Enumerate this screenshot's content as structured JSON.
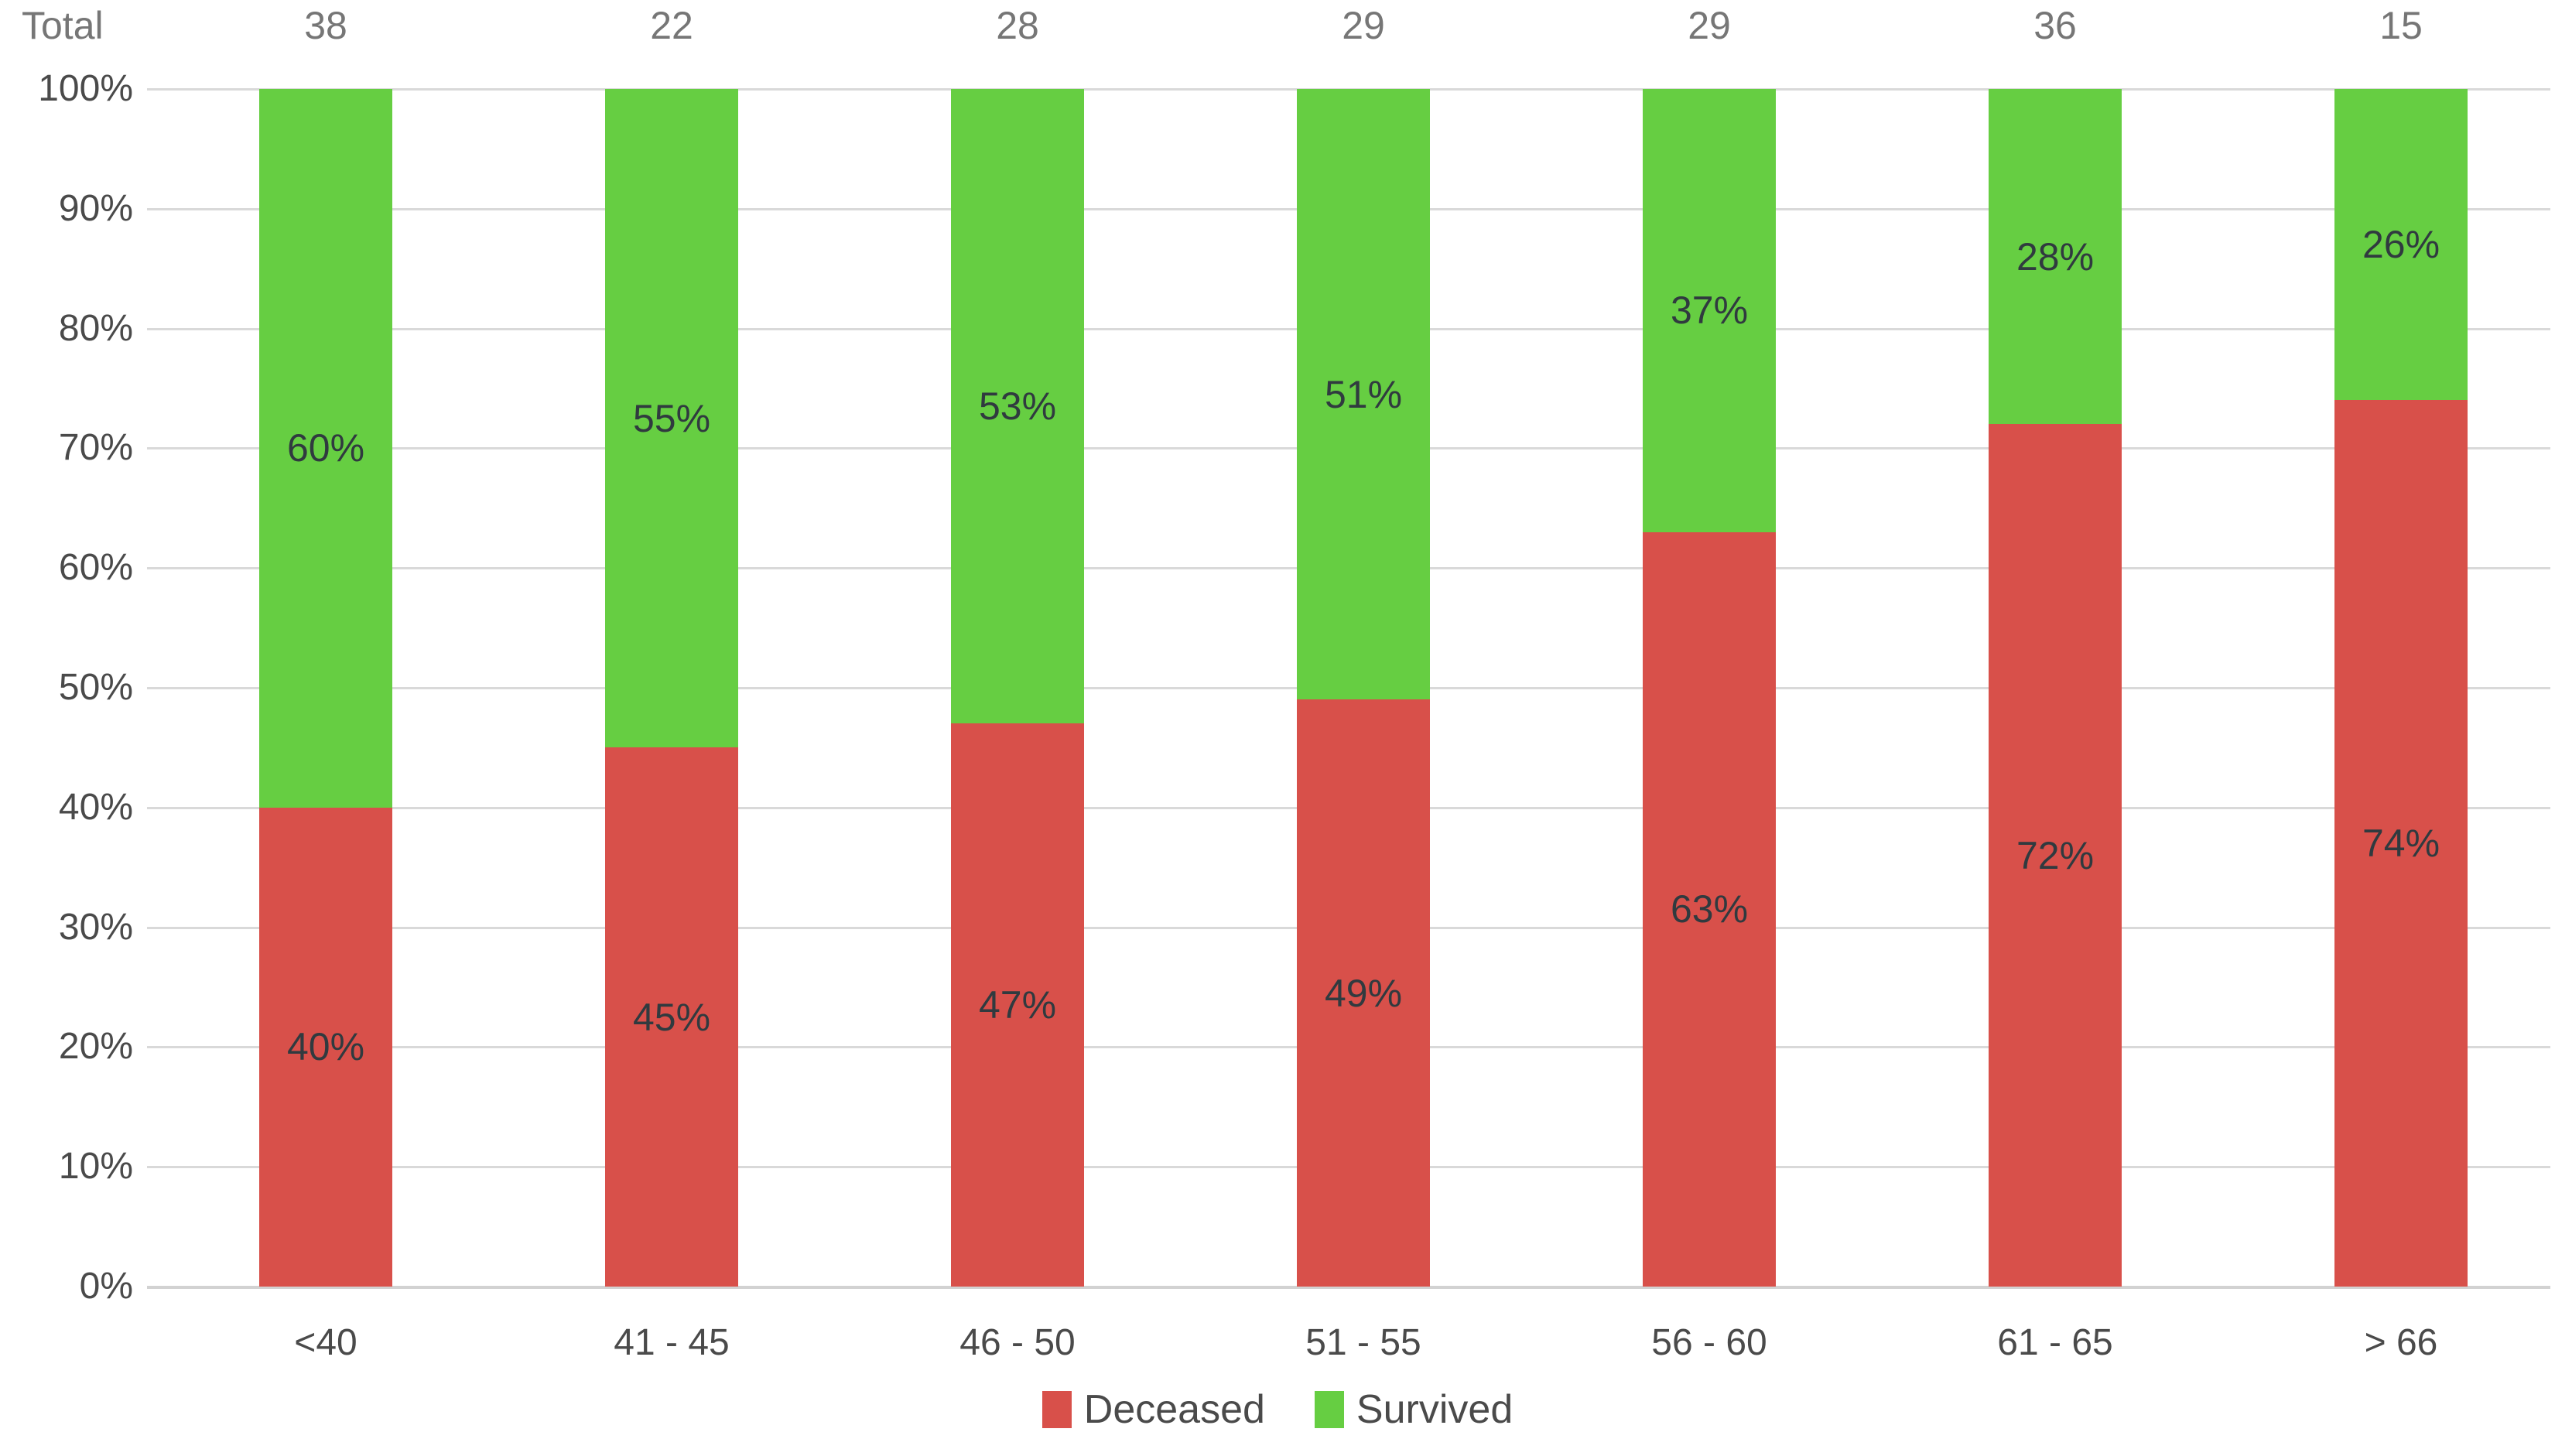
{
  "chart_data": {
    "type": "bar",
    "stacked": true,
    "percent_stacked": true,
    "title": "",
    "totals_header": "Total",
    "categories": [
      "<40",
      "41 - 45",
      "46 - 50",
      "51 - 55",
      "56 - 60",
      "61 - 65",
      "> 66"
    ],
    "totals": [
      38,
      22,
      28,
      29,
      29,
      36,
      15
    ],
    "series": [
      {
        "name": "Deceased",
        "color": "#d8504a",
        "values": [
          40,
          45,
          47,
          49,
          63,
          72,
          74
        ]
      },
      {
        "name": "Survived",
        "color": "#66ce42",
        "values": [
          60,
          55,
          53,
          51,
          37,
          28,
          26
        ]
      }
    ],
    "value_suffix": "%",
    "data_labels": "inside-center",
    "y_axis": {
      "min": 0,
      "max": 100,
      "ticks": [
        "0%",
        "10%",
        "20%",
        "30%",
        "40%",
        "50%",
        "60%",
        "70%",
        "80%",
        "90%",
        "100%"
      ],
      "grid": true
    },
    "legend_position": "bottom",
    "colors": {
      "gridline": "#d9d9d9",
      "axis_line": "#d2d2d2",
      "tick_text": "#4a4a4a",
      "total_text": "#767676",
      "bar_label_text": "#303a3f"
    }
  }
}
